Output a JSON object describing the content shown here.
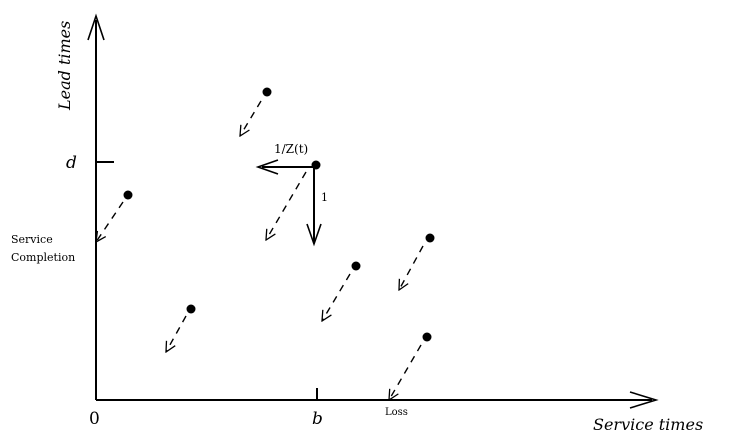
{
  "axes": {
    "y_label": "Lead times",
    "x_label": "Service times",
    "origin_label": "0",
    "d_label": "d",
    "b_label": "b"
  },
  "annotations": {
    "rate_label": "1/Z(t)",
    "unit_label": "1",
    "service_label_line1": "Service",
    "service_label_line2": "Completion",
    "loss_label": "Loss"
  },
  "colors": {
    "ink": "#000000",
    "background": "#ffffff"
  }
}
